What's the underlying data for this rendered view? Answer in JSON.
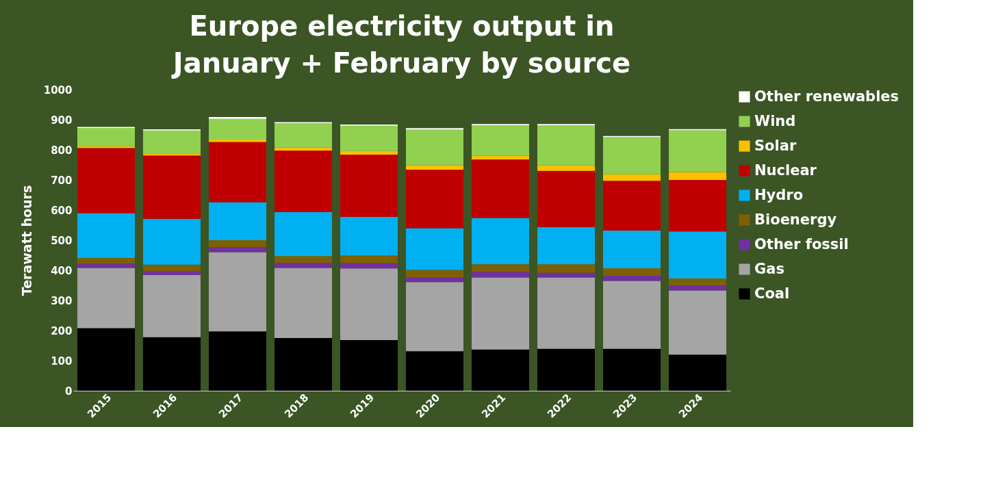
{
  "chart_data": {
    "type": "bar",
    "title": "Europe electricity output in\nJanuary + February by source",
    "ylabel": "Terawatt hours",
    "categories": [
      "2015",
      "2016",
      "2017",
      "2018",
      "2019",
      "2020",
      "2021",
      "2022",
      "2023",
      "2024"
    ],
    "stacked": true,
    "ylim": [
      0,
      1000
    ],
    "yticks": [
      0,
      100,
      200,
      300,
      400,
      500,
      600,
      700,
      800,
      900,
      1000
    ],
    "grid": false,
    "legend": "right",
    "series": [
      {
        "name": "Coal",
        "color": "#000000",
        "values": [
          208,
          178,
          197,
          175,
          168,
          131,
          137,
          139,
          139,
          120
        ]
      },
      {
        "name": "Gas",
        "color": "#a5a5a5",
        "values": [
          200,
          206,
          263,
          233,
          238,
          230,
          239,
          237,
          226,
          213
        ]
      },
      {
        "name": "Other fossil",
        "color": "#7030a0",
        "values": [
          14,
          13,
          17,
          17,
          18,
          15,
          19,
          16,
          17,
          17
        ]
      },
      {
        "name": "Bioenergy",
        "color": "#7f6000",
        "values": [
          19,
          22,
          23,
          22,
          25,
          25,
          25,
          28,
          25,
          23
        ]
      },
      {
        "name": "Hydro",
        "color": "#00b0f0",
        "values": [
          149,
          152,
          126,
          146,
          128,
          139,
          154,
          124,
          125,
          156
        ]
      },
      {
        "name": "Nuclear",
        "color": "#c00000",
        "values": [
          216,
          210,
          200,
          205,
          207,
          194,
          194,
          186,
          165,
          171
        ]
      },
      {
        "name": "Solar",
        "color": "#ffc000",
        "values": [
          6,
          7,
          8,
          10,
          12,
          15,
          12,
          19,
          22,
          26
        ]
      },
      {
        "name": "Wind",
        "color": "#92d050",
        "values": [
          61,
          76,
          69,
          80,
          84,
          118,
          102,
          133,
          123,
          139
        ]
      },
      {
        "name": "Other renewables",
        "color": "#ffffff",
        "values": [
          3,
          4,
          6,
          4,
          4,
          5,
          4,
          4,
          4,
          4
        ]
      }
    ]
  }
}
